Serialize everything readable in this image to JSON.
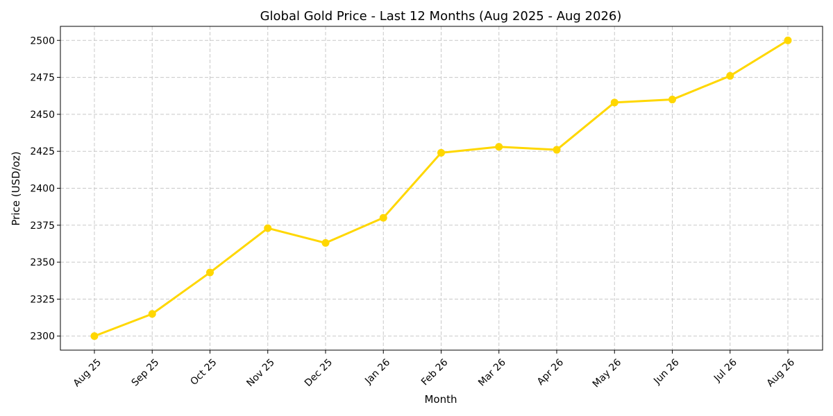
{
  "chart_data": {
    "type": "line",
    "title": "Global Gold Price - Last 12 Months (Aug 2025 - Aug 2026)",
    "xlabel": "Month",
    "ylabel": "Price (USD/oz)",
    "categories": [
      "Aug 25",
      "Sep 25",
      "Oct 25",
      "Nov 25",
      "Dec 25",
      "Jan 26",
      "Feb 26",
      "Mar 26",
      "Apr 26",
      "May 26",
      "Jun 26",
      "Jul 26",
      "Aug 26"
    ],
    "series": [
      {
        "values": [
          2300,
          2315,
          2343,
          2373,
          2363,
          2380,
          2424,
          2428,
          2426,
          2458,
          2460,
          2476,
          2500
        ],
        "color": "#FFD700"
      }
    ],
    "yticks": [
      2300,
      2325,
      2350,
      2375,
      2400,
      2425,
      2450,
      2475,
      2500
    ],
    "ylim": [
      2290.5,
      2509.5
    ],
    "grid": true,
    "legend": "none"
  }
}
